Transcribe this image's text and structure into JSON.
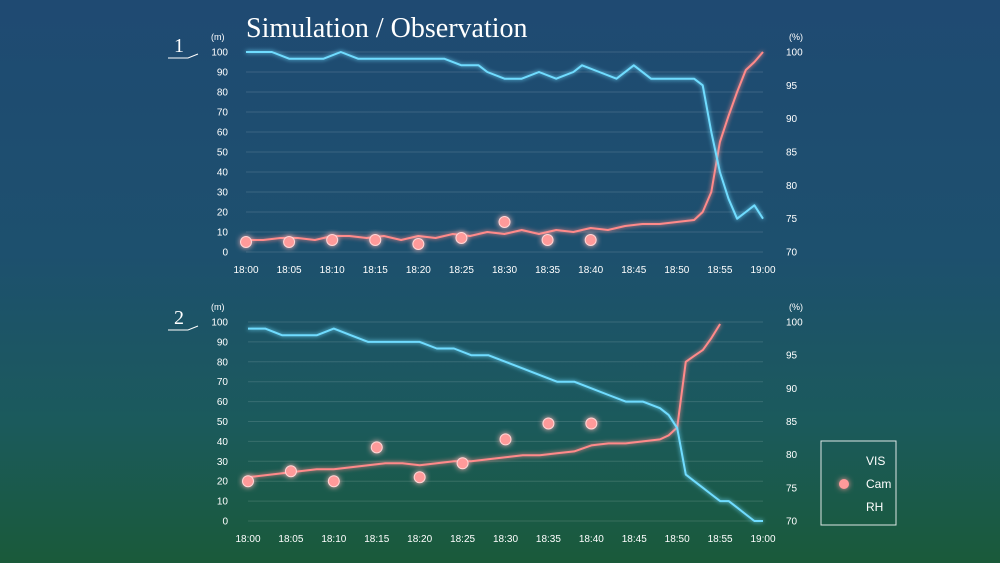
{
  "title": "Simulation / Observation",
  "colors": {
    "vis": "#ff8a8a",
    "cam": "#ff9a9a",
    "rh": "#6fdcff"
  },
  "legend": {
    "vis": "VIS",
    "cam": "Cam",
    "rh": "RH"
  },
  "chart_data": [
    {
      "type": "line",
      "panel_label": "1",
      "y_left_unit": "(m)",
      "y_right_unit": "(%)",
      "ylim_left": [
        0,
        100
      ],
      "ylim_right": [
        70,
        100
      ],
      "left_ticks": [
        "0",
        "10",
        "20",
        "30",
        "40",
        "50",
        "60",
        "70",
        "80",
        "90",
        "100"
      ],
      "right_ticks": [
        "70",
        "75",
        "80",
        "85",
        "90",
        "95",
        "100"
      ],
      "x_labels": [
        "18:00",
        "18:05",
        "18:10",
        "18:15",
        "18:20",
        "18:25",
        "18:30",
        "18:35",
        "18:40",
        "18:45",
        "18:50",
        "18:55",
        "19:00"
      ],
      "x_range_min": [
        0,
        60
      ],
      "series": [
        {
          "name": "VIS",
          "axis": "left",
          "x": [
            0,
            2,
            4,
            6,
            8,
            10,
            12,
            14,
            16,
            18,
            20,
            22,
            24,
            26,
            28,
            30,
            32,
            34,
            36,
            38,
            40,
            42,
            44,
            46,
            48,
            50,
            52,
            53,
            54,
            55,
            56,
            57,
            58,
            59,
            60
          ],
          "y": [
            6,
            6,
            7,
            7,
            6,
            8,
            8,
            7,
            8,
            6,
            8,
            7,
            9,
            8,
            10,
            9,
            11,
            9,
            11,
            10,
            12,
            11,
            13,
            14,
            14,
            15,
            16,
            20,
            30,
            55,
            68,
            80,
            91,
            95,
            100
          ]
        },
        {
          "name": "Cam",
          "axis": "left",
          "marker": "circle",
          "x": [
            0,
            5,
            10,
            15,
            20,
            25,
            30,
            35,
            40
          ],
          "y": [
            5,
            5,
            6,
            6,
            4,
            7,
            15,
            6,
            6
          ]
        },
        {
          "name": "RH",
          "axis": "right",
          "x": [
            0,
            3,
            5,
            7,
            9,
            11,
            13,
            15,
            17,
            19,
            21,
            23,
            25,
            27,
            28,
            30,
            32,
            34,
            36,
            38,
            39,
            41,
            43,
            45,
            47,
            49,
            51,
            52,
            53,
            54,
            55,
            56,
            57,
            58,
            59,
            60
          ],
          "y": [
            100,
            100,
            99,
            99,
            99,
            100,
            99,
            99,
            99,
            99,
            99,
            99,
            98,
            98,
            97,
            96,
            96,
            97,
            96,
            97,
            98,
            97,
            96,
            98,
            96,
            96,
            96,
            96,
            95,
            88,
            82,
            78,
            75,
            76,
            77,
            75
          ]
        }
      ]
    },
    {
      "type": "line",
      "panel_label": "2",
      "y_left_unit": "(m)",
      "y_right_unit": "(%)",
      "ylim_left": [
        0,
        100
      ],
      "ylim_right": [
        70,
        100
      ],
      "left_ticks": [
        "0",
        "10",
        "20",
        "30",
        "40",
        "50",
        "60",
        "70",
        "80",
        "90",
        "100"
      ],
      "right_ticks": [
        "70",
        "75",
        "80",
        "85",
        "90",
        "95",
        "100"
      ],
      "x_labels": [
        "18:00",
        "18:05",
        "18:10",
        "18:15",
        "18:20",
        "18:25",
        "18:30",
        "18:35",
        "18:40",
        "18:45",
        "18:50",
        "18:55",
        "19:00"
      ],
      "x_range_min": [
        0,
        60
      ],
      "series": [
        {
          "name": "VIS",
          "axis": "left",
          "x": [
            0,
            2,
            4,
            6,
            8,
            10,
            12,
            14,
            16,
            18,
            20,
            22,
            24,
            26,
            28,
            30,
            32,
            34,
            36,
            38,
            40,
            42,
            44,
            46,
            48,
            49,
            50,
            51,
            52,
            53,
            54,
            55
          ],
          "y": [
            22,
            23,
            24,
            25,
            26,
            26,
            27,
            28,
            29,
            29,
            28,
            29,
            30,
            30,
            31,
            32,
            33,
            33,
            34,
            35,
            38,
            39,
            39,
            40,
            41,
            43,
            47,
            80,
            83,
            86,
            92,
            99
          ]
        },
        {
          "name": "Cam",
          "axis": "left",
          "marker": "circle",
          "x": [
            0,
            5,
            10,
            15,
            20,
            25,
            30,
            35,
            40
          ],
          "y": [
            20,
            25,
            20,
            37,
            22,
            29,
            41,
            49,
            49
          ]
        },
        {
          "name": "RH",
          "axis": "right",
          "x": [
            0,
            2,
            4,
            6,
            8,
            10,
            12,
            14,
            16,
            18,
            20,
            22,
            24,
            26,
            28,
            30,
            32,
            34,
            36,
            38,
            40,
            42,
            44,
            46,
            48,
            49,
            50,
            51,
            52,
            53,
            54,
            55,
            56,
            57,
            58,
            59,
            60
          ],
          "y": [
            99,
            99,
            98,
            98,
            98,
            99,
            98,
            97,
            97,
            97,
            97,
            96,
            96,
            95,
            95,
            94,
            93,
            92,
            91,
            91,
            90,
            89,
            88,
            88,
            87,
            86,
            84,
            77,
            76,
            75,
            74,
            73,
            73,
            72,
            71,
            70,
            70
          ]
        }
      ]
    }
  ]
}
